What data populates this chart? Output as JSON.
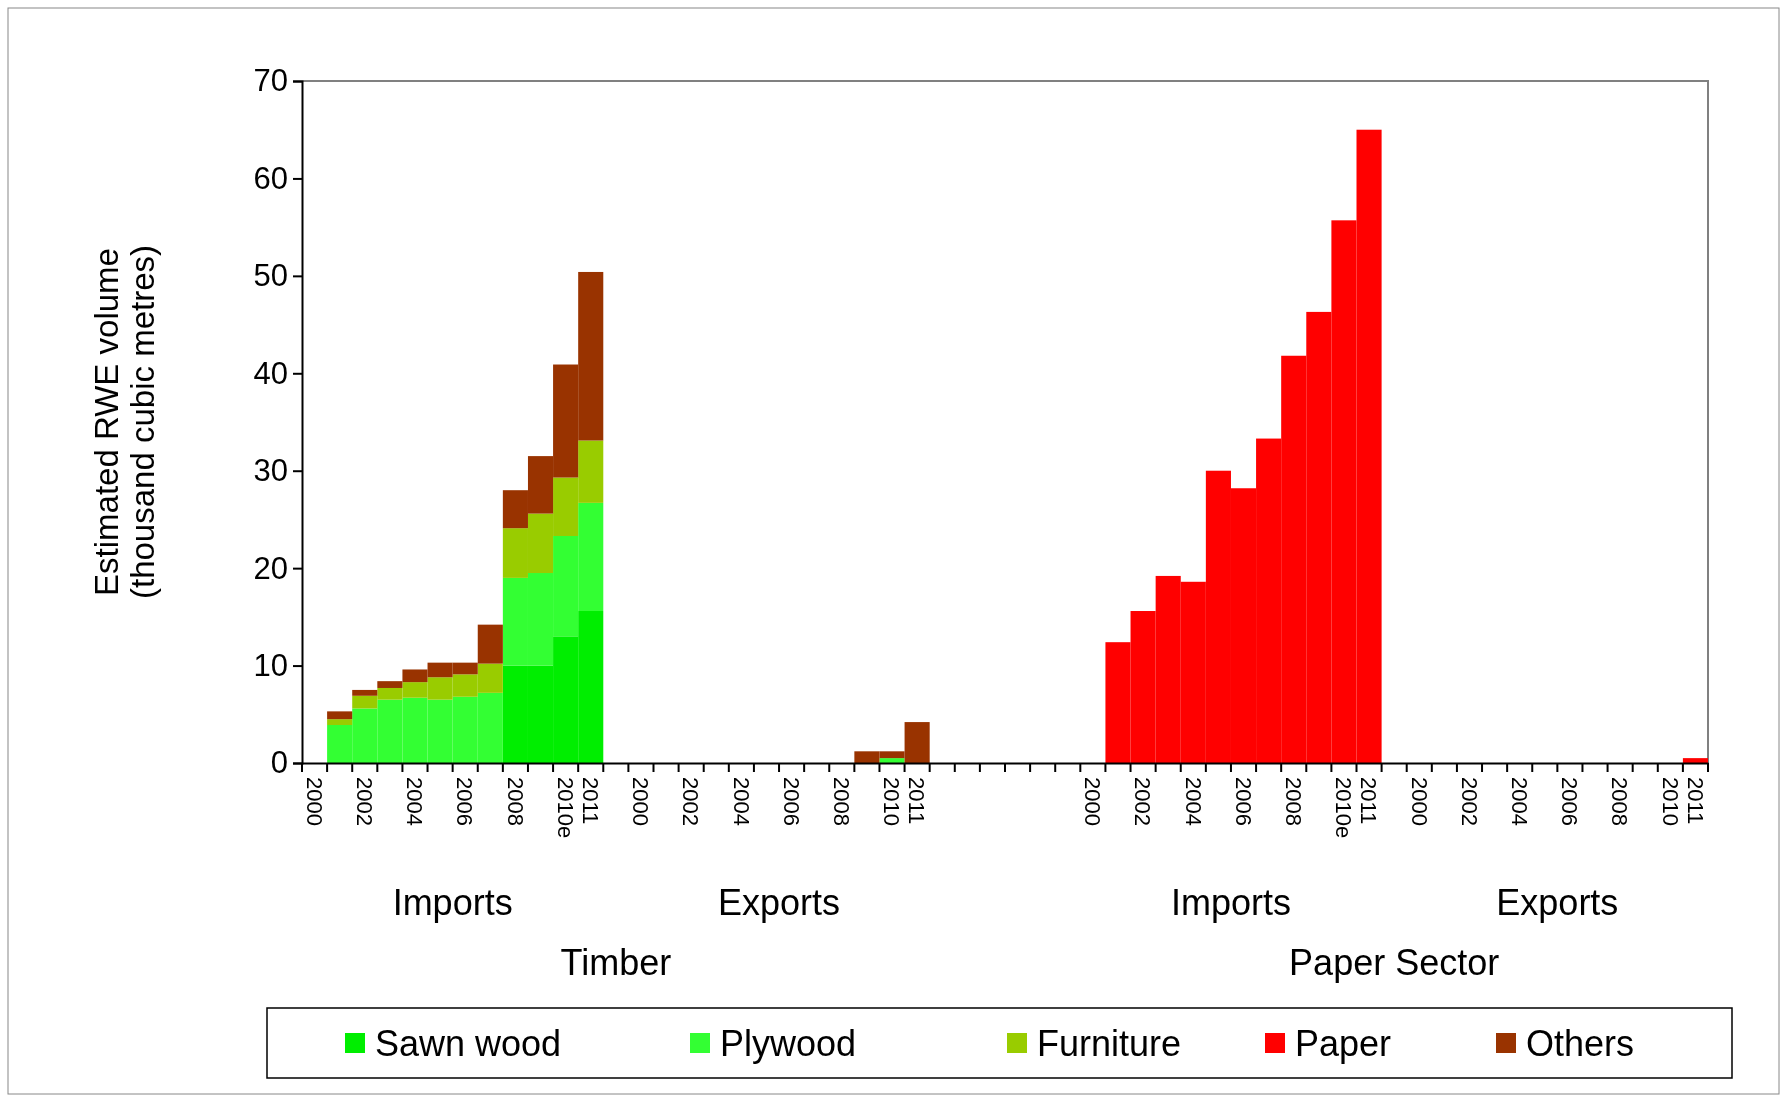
{
  "chart_data": {
    "type": "bar",
    "stacked": true,
    "ylabel": "Estimated RWE volume\n(thousand cubic metres)",
    "categories": [
      "2000",
      null,
      "2002",
      null,
      "2004",
      null,
      "2006",
      null,
      "2008",
      null,
      "2010e",
      "2011",
      null,
      "2000",
      null,
      "2002",
      null,
      "2004",
      null,
      "2006",
      null,
      "2008",
      null,
      "2010",
      "2011",
      null,
      null,
      null,
      null,
      null,
      null,
      "2000",
      null,
      "2002",
      null,
      "2004",
      null,
      "2006",
      null,
      "2008",
      null,
      "2010e",
      "2011",
      null,
      "2000",
      null,
      "2002",
      null,
      "2004",
      null,
      "2006",
      null,
      "2008",
      null,
      "2010",
      "2011"
    ],
    "series": [
      {
        "name": "Sawn wood",
        "color": "#00ee00",
        "values": [
          null,
          0,
          0,
          0,
          0,
          0,
          0,
          0,
          10,
          10,
          13,
          15.6,
          null,
          null,
          null,
          null,
          null,
          null,
          null,
          null,
          null,
          null,
          null,
          null,
          null,
          null,
          null,
          null,
          null,
          null,
          null,
          null,
          null,
          null,
          null,
          null,
          null,
          null,
          null,
          null,
          null,
          null,
          null,
          null,
          null,
          null,
          null,
          null,
          null,
          null,
          null,
          null,
          null,
          null,
          null,
          null
        ]
      },
      {
        "name": "Plywood",
        "color": "#33ff33",
        "values": [
          null,
          3.9,
          5.6,
          6.5,
          6.7,
          6.5,
          6.8,
          7.2,
          9.0,
          9.5,
          10.3,
          11.1,
          null,
          null,
          null,
          null,
          null,
          null,
          null,
          null,
          null,
          null,
          null,
          0.5,
          null,
          null,
          null,
          null,
          null,
          null,
          null,
          null,
          null,
          null,
          null,
          null,
          null,
          null,
          null,
          null,
          null,
          null,
          null,
          null,
          null,
          null,
          null,
          null,
          null,
          null,
          null,
          null,
          null,
          null,
          null,
          null
        ]
      },
      {
        "name": "Furniture",
        "color": "#99cc00",
        "values": [
          null,
          0.6,
          1.3,
          1.2,
          1.6,
          2.3,
          2.3,
          3.0,
          5.1,
          6.1,
          6.0,
          6.4,
          null,
          null,
          null,
          null,
          null,
          null,
          null,
          null,
          null,
          null,
          null,
          null,
          null,
          null,
          null,
          null,
          null,
          null,
          null,
          null,
          null,
          null,
          null,
          null,
          null,
          null,
          null,
          null,
          null,
          null,
          null,
          null,
          null,
          null,
          null,
          null,
          null,
          null,
          null,
          null,
          null,
          null,
          null,
          null
        ]
      },
      {
        "name": "Paper",
        "color": "#ff0000",
        "values": [
          null,
          null,
          null,
          null,
          null,
          null,
          null,
          null,
          null,
          null,
          null,
          null,
          null,
          null,
          null,
          null,
          null,
          null,
          null,
          null,
          null,
          null,
          null,
          null,
          null,
          null,
          null,
          null,
          null,
          null,
          null,
          null,
          12.4,
          15.6,
          19.2,
          18.6,
          30.0,
          28.2,
          33.3,
          41.8,
          46.3,
          55.7,
          65.0,
          null,
          null,
          null,
          null,
          null,
          null,
          null,
          null,
          null,
          null,
          null,
          null,
          0.5
        ]
      },
      {
        "name": "Others",
        "color": "#993300",
        "values": [
          null,
          0.8,
          0.6,
          0.7,
          1.3,
          1.5,
          1.2,
          4.0,
          3.9,
          5.9,
          11.6,
          17.3,
          null,
          null,
          null,
          null,
          null,
          null,
          null,
          null,
          null,
          null,
          1.2,
          0.7,
          4.2,
          null,
          null,
          null,
          null,
          null,
          null,
          null,
          null,
          null,
          null,
          null,
          null,
          null,
          null,
          null,
          null,
          null,
          null,
          null,
          null,
          null,
          null,
          null,
          null,
          null,
          null,
          null,
          null,
          null,
          null,
          null
        ]
      }
    ],
    "annotations": [
      "Imports",
      "Exports",
      "Imports",
      "Exports",
      "Timber",
      "Paper Sector"
    ],
    "ylim": [
      0,
      70
    ],
    "yticks": [
      0,
      10,
      20,
      30,
      40,
      50,
      60,
      70
    ],
    "legend": "bottom"
  }
}
